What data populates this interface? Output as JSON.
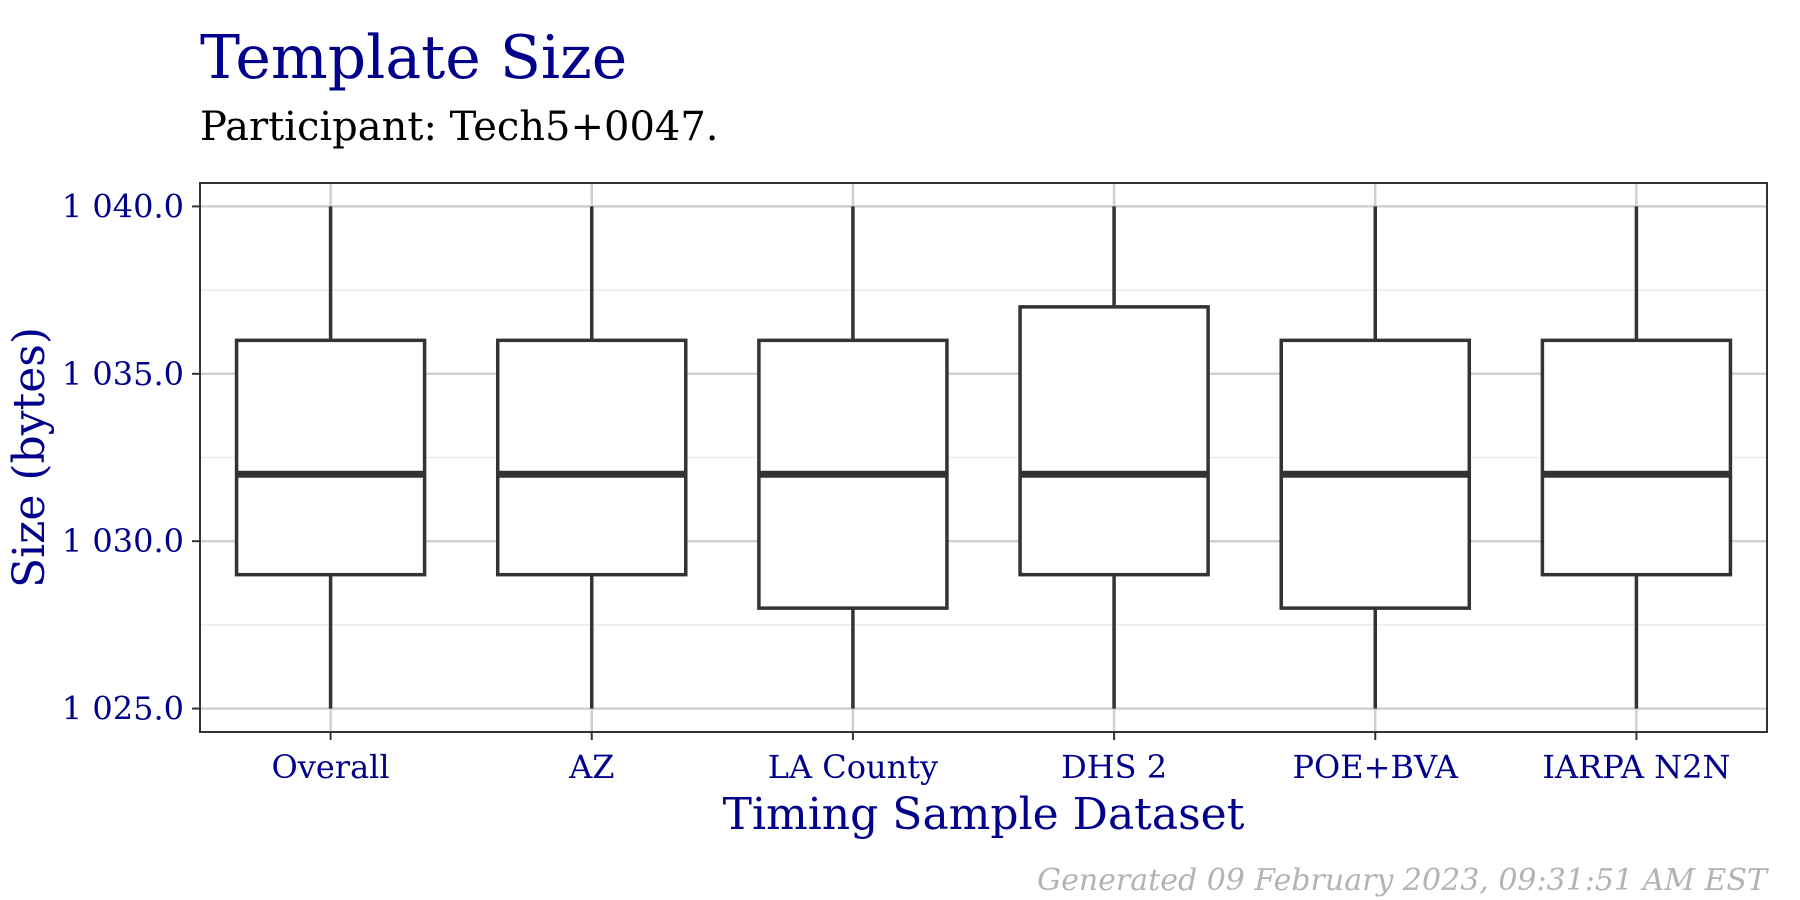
{
  "chart_data": {
    "type": "boxplot",
    "title": "Template Size",
    "subtitle": "Participant: Tech5+0047.",
    "xlabel": "Timing Sample Dataset",
    "ylabel": "Size (bytes)",
    "ylim": [
      1024.3,
      1040.7
    ],
    "yticks": [
      {
        "value": 1025,
        "label": "1 025.0"
      },
      {
        "value": 1030,
        "label": "1 030.0"
      },
      {
        "value": 1035,
        "label": "1 035.0"
      },
      {
        "value": 1040,
        "label": "1 040.0"
      }
    ],
    "grid": true,
    "categories": [
      "Overall",
      "AZ",
      "LA County",
      "DHS 2",
      "POE+BVA",
      "IARPA N2N"
    ],
    "boxes": [
      {
        "min": 1025,
        "q1": 1029,
        "median": 1032,
        "q3": 1036,
        "max": 1040
      },
      {
        "min": 1025,
        "q1": 1029,
        "median": 1032,
        "q3": 1036,
        "max": 1040
      },
      {
        "min": 1025,
        "q1": 1028,
        "median": 1032,
        "q3": 1036,
        "max": 1040
      },
      {
        "min": 1025,
        "q1": 1029,
        "median": 1032,
        "q3": 1037,
        "max": 1040
      },
      {
        "min": 1025,
        "q1": 1028,
        "median": 1032,
        "q3": 1036,
        "max": 1040
      },
      {
        "min": 1025,
        "q1": 1029,
        "median": 1032,
        "q3": 1036,
        "max": 1040
      }
    ],
    "footer": "Generated 09 February 2023, 09:31:51 AM EST",
    "colors": {
      "title": "#00008b",
      "axis_text": "#00008b",
      "box": "#333333",
      "footer": "#b3b3b3"
    }
  }
}
